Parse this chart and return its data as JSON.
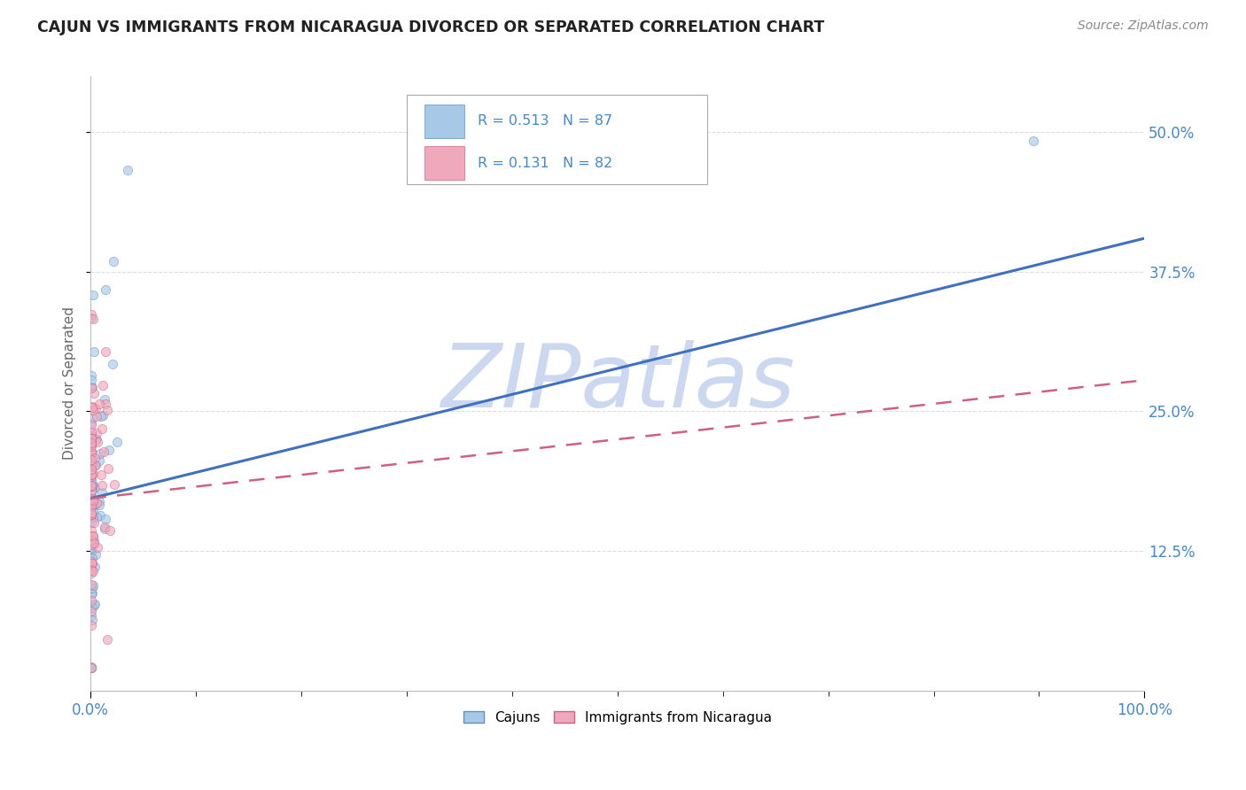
{
  "title": "CAJUN VS IMMIGRANTS FROM NICARAGUA DIVORCED OR SEPARATED CORRELATION CHART",
  "source": "Source: ZipAtlas.com",
  "ylabel": "Divorced or Separated",
  "xlim": [
    0,
    1.0
  ],
  "ylim": [
    0,
    0.55
  ],
  "xticklabels": [
    "0.0%",
    "100.0%"
  ],
  "ytick_positions": [
    0.125,
    0.25,
    0.375,
    0.5
  ],
  "ytick_labels": [
    "12.5%",
    "25.0%",
    "37.5%",
    "50.0%"
  ],
  "cajun_R": "0.513",
  "cajun_N": "87",
  "nicaragua_R": "0.131",
  "nicaragua_N": "82",
  "cajun_color": "#a8c8e8",
  "cajun_edge": "#6090c0",
  "nicaragua_color": "#f0a8bc",
  "nicaragua_edge": "#d06080",
  "cajun_line_color": "#4070c0",
  "nicaragua_line_color": "#d06080",
  "cajun_line_x0": 0.0,
  "cajun_line_y0": 0.172,
  "cajun_line_x1": 1.0,
  "cajun_line_y1": 0.405,
  "nic_line_x0": 0.0,
  "nic_line_y0": 0.172,
  "nic_line_x1": 1.0,
  "nic_line_y1": 0.278,
  "watermark": "ZIPatlas",
  "watermark_color": "#ccd8f0",
  "background_color": "#ffffff",
  "grid_color": "#dddddd",
  "title_color": "#222222",
  "tick_label_color": "#4488cc",
  "scatter_size": 55,
  "scatter_alpha": 0.65,
  "scatter_linewidth": 0.5
}
